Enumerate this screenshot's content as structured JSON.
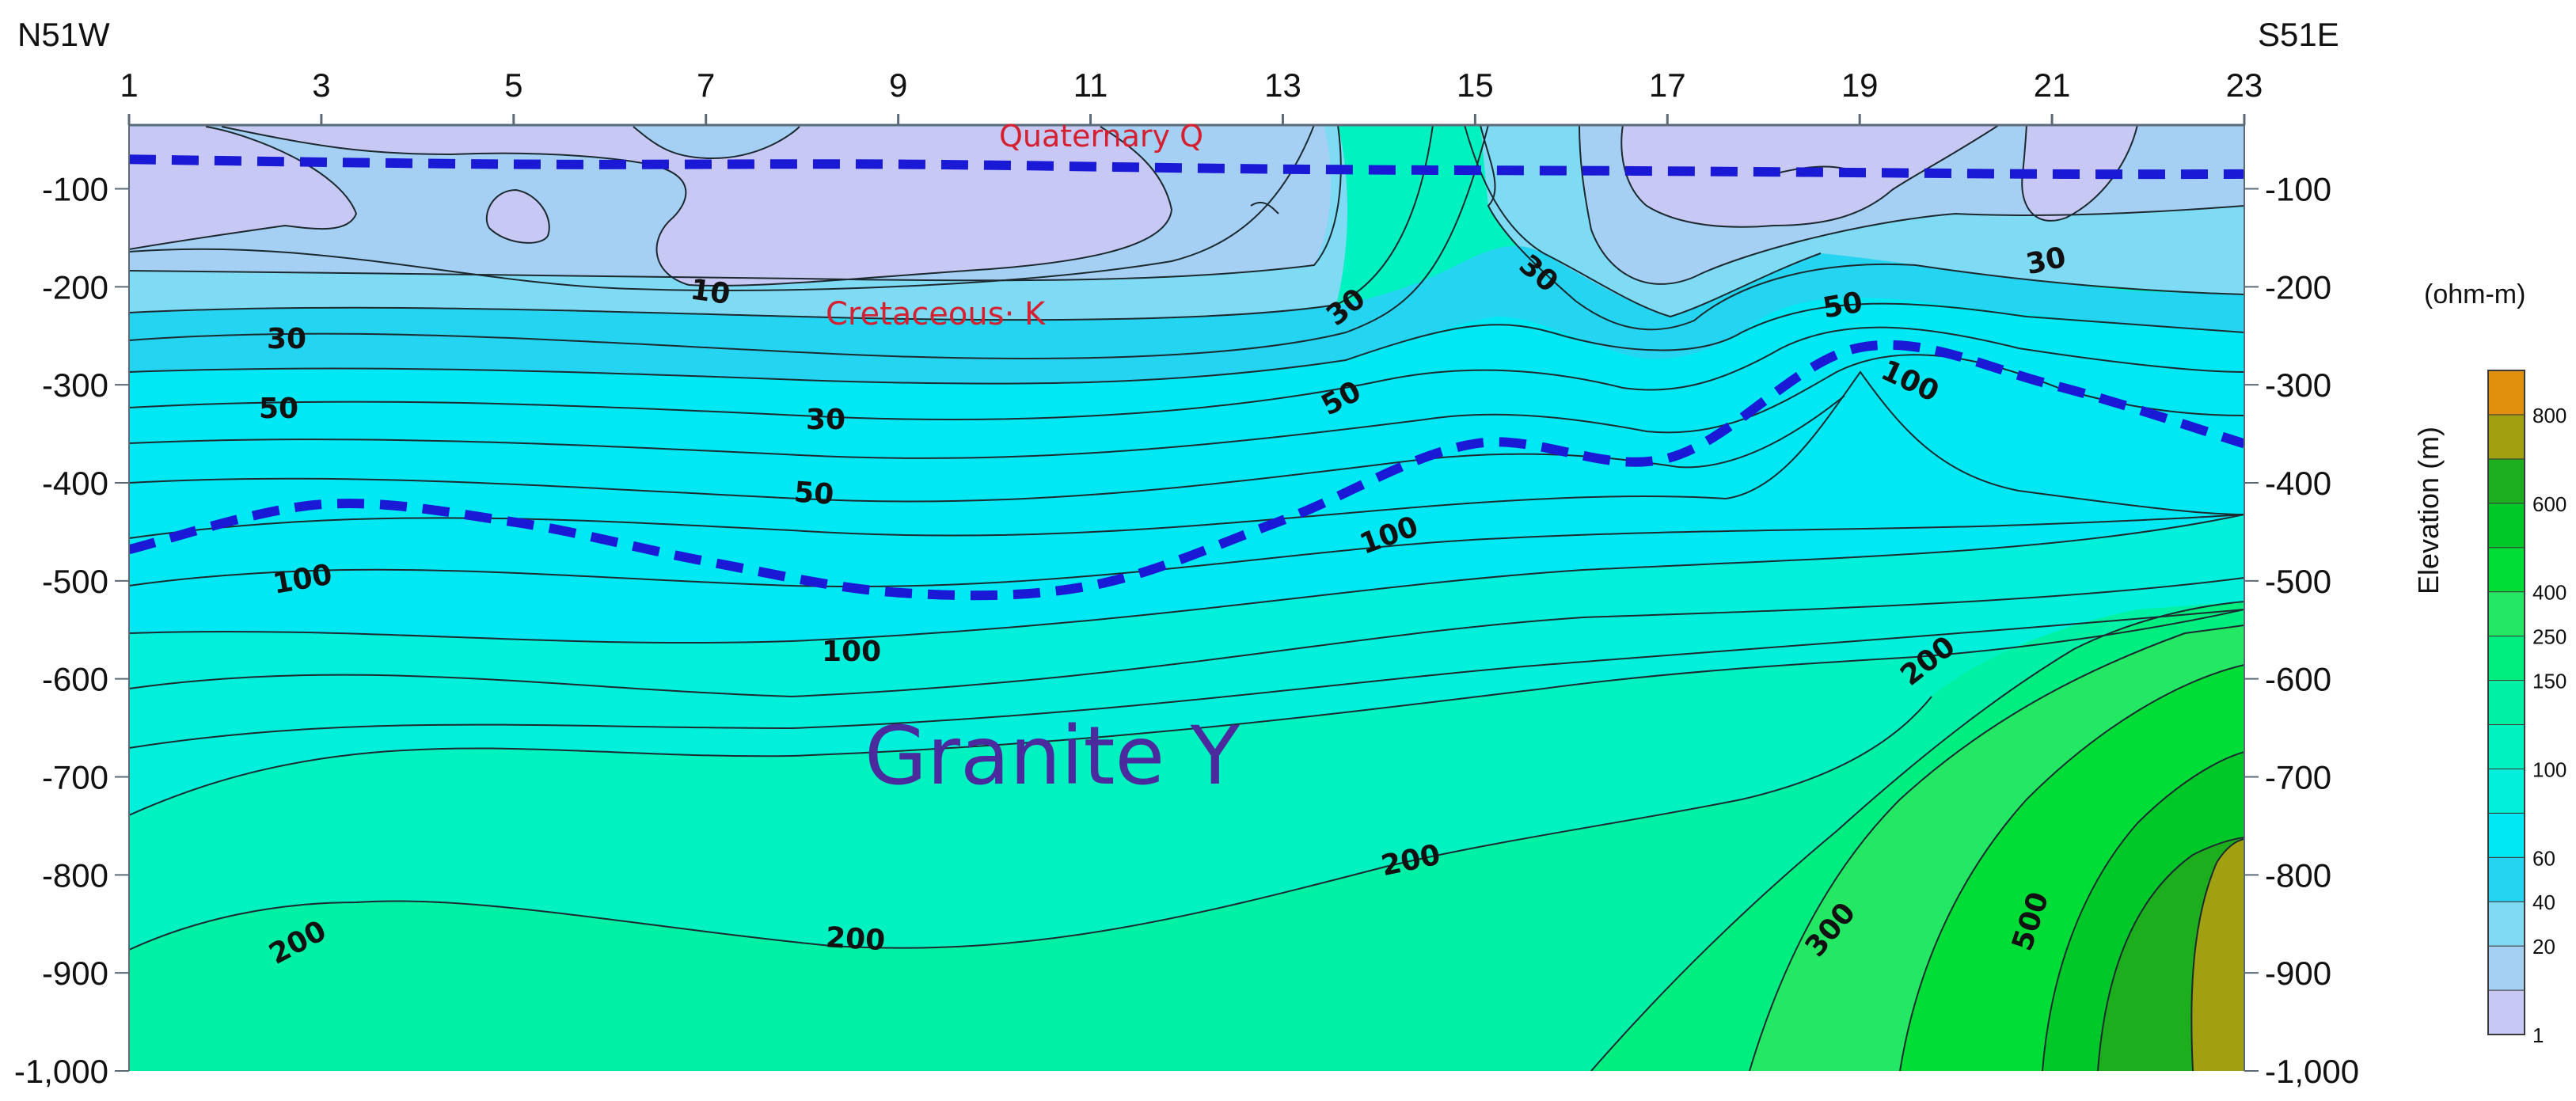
{
  "chart_data": {
    "type": "heatmap",
    "subtype": "resistivity contour section",
    "direction_labels": {
      "left": "N51W",
      "right": "S51E"
    },
    "station_ticks": [
      "1",
      "3",
      "5",
      "7",
      "9",
      "11",
      "13",
      "15",
      "17",
      "19",
      "21",
      "23"
    ],
    "x_range": [
      1,
      23
    ],
    "elevation_ticks": [
      "-100",
      "-200",
      "-300",
      "-400",
      "-500",
      "-600",
      "-700",
      "-800",
      "-900",
      "-1,000"
    ],
    "y_range": [
      -1000,
      -35
    ],
    "colorbar": {
      "unit_label": "(ohm-m)",
      "axis_label": "Elevation (m)",
      "levels": [
        1,
        20,
        40,
        60,
        100,
        150,
        250,
        400,
        600,
        800
      ],
      "tick_labels": [
        "1",
        "20",
        "40",
        "60",
        "100",
        "150",
        "250",
        "400",
        "600",
        "800"
      ],
      "colors": [
        "#c8c8f5",
        "#a6cff4",
        "#7fdaf4",
        "#24d4f0",
        "#00e8f4",
        "#00f0dc",
        "#00f2c0",
        "#00f0a4",
        "#00ee80",
        "#24e864",
        "#00dd36",
        "#00c828",
        "#1cae1c",
        "#a0a010",
        "#e0900c"
      ]
    },
    "contour_labels": {
      "c10": "10",
      "c30a": "30",
      "c30b": "30",
      "c30c": "30",
      "c30d": "30",
      "c30e": "30",
      "c50a": "50",
      "c50b": "50",
      "c50c": "50",
      "c50d": "50",
      "c100a": "100",
      "c100b": "100",
      "c100c": "100",
      "c100d": "100",
      "c200a": "200",
      "c200b": "200",
      "c200c": "200",
      "c200d": "200",
      "c300": "300",
      "c500": "500"
    },
    "unit_annotations": {
      "quaternary": "Quaternary Q",
      "cretaceous": "Cretaceous· K",
      "granite": "Granite Y"
    },
    "boundaries": {
      "quaternary_base": [
        [
          1,
          -70
        ],
        [
          5,
          -75
        ],
        [
          9,
          -75
        ],
        [
          13,
          -80
        ],
        [
          17,
          -82
        ],
        [
          21,
          -85
        ],
        [
          23,
          -85
        ]
      ],
      "cretaceous_base": [
        [
          1,
          -468
        ],
        [
          3,
          -422
        ],
        [
          5,
          -440
        ],
        [
          7,
          -480
        ],
        [
          9,
          -512
        ],
        [
          11,
          -505
        ],
        [
          13,
          -438
        ],
        [
          15,
          -360
        ],
        [
          17,
          -375
        ],
        [
          19,
          -262
        ],
        [
          21,
          -300
        ],
        [
          23,
          -360
        ]
      ]
    },
    "colors": {
      "boundary": "#1a1ad6",
      "annotation_red": "#d42030",
      "annotation_granite": "#4a2a9c"
    }
  }
}
